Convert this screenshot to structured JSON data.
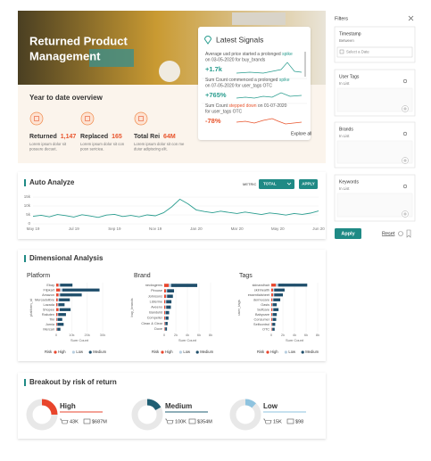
{
  "hero": {
    "title_lines": [
      "Returned Product",
      "Management"
    ]
  },
  "overview": {
    "title": "Year to date overview",
    "items": [
      {
        "label": "Returned",
        "value": "1,147",
        "text": [
          "Lorem ipsum dolor sit",
          "posuere decuet."
        ]
      },
      {
        "label": "Replaced",
        "value": "165",
        "text": [
          "Lorem ipsum dolor sit con",
          "posn sericiea."
        ]
      },
      {
        "label": "Total Rei",
        "value": "64M",
        "text": [
          "Lorem ipsum dolor sit con me",
          "duiur adipiscing elit."
        ]
      }
    ]
  },
  "signals": {
    "title": "Latest Signals",
    "link": "Explore all",
    "items": [
      {
        "pre": "Average usd price started a prolonged ",
        "hl": "spike",
        "line2": "on 03-05-2020 for buy_brands",
        "change": "+1.7k",
        "color": "#2a9d8f"
      },
      {
        "pre": "Sum Count commenced a prolonged ",
        "hl": "spike",
        "line2": "on 07-05-2020 for user_tags OTC",
        "change": "+765%",
        "color": "#2a9d8f"
      },
      {
        "pre": "Sum Count ",
        "hl": "stepped down",
        "post": " on 01-07-2020",
        "line2": "for user_tags OTC",
        "change": "-78%",
        "color": "#e8542c"
      }
    ]
  },
  "auto_analyze": {
    "title": "Auto Analyze",
    "metric_label": "METRIC",
    "metric": "TOTAL",
    "button": "APPLY",
    "chart": {
      "type": "line",
      "color": "#2a9d8f",
      "grid": true,
      "categories": [
        "May 19",
        null,
        null,
        null,
        null,
        "Jul 19",
        null,
        null,
        null,
        null,
        "Sep 19",
        null,
        null,
        null,
        null,
        "Nov 19",
        null,
        null,
        null,
        null,
        "Jan 20",
        null,
        null,
        null,
        null,
        "Mar 20",
        null,
        null,
        null,
        null,
        "May 20",
        null,
        null,
        null,
        null,
        "Jun 20"
      ],
      "values": [
        4200,
        4800,
        3900,
        5200,
        4600,
        3800,
        5100,
        4400,
        3600,
        4900,
        5300,
        4100,
        4700,
        3900,
        5000,
        4500,
        6200,
        9500,
        13800,
        11200,
        7800,
        6900,
        6200,
        7100,
        6400,
        5800,
        6600,
        5900,
        5200,
        6100,
        5600,
        4900,
        5800,
        5300,
        6000,
        7200
      ],
      "ylim": [
        0,
        15000
      ],
      "yticks": [
        0,
        {
          "value": 5000,
          "label": "5k"
        },
        {
          "value": 10000,
          "label": "10k"
        },
        {
          "value": 15000,
          "label": "15k"
        }
      ]
    }
  },
  "dimensional": {
    "title": "Dimensional Analysis",
    "charts": [
      {
        "type": "hbar-stacked",
        "title": "Platform",
        "ylabel": "platform_id",
        "xlabel": "Sum Count",
        "legend_title": "Risk",
        "categories": [
          "Ebay",
          "Flipkart",
          "Amazon",
          "Mercadolibre",
          "Lazada",
          "Shopee",
          "Rakuten",
          "Tiki",
          "Jumia",
          "Mercari"
        ],
        "series": [
          {
            "name": "High",
            "color": "#e8452c",
            "values": [
              1500,
              2500,
              1500,
              1000,
              800,
              1500,
              800,
              500,
              500,
              400
            ]
          },
          {
            "name": "Low",
            "color": "#b9cfe0",
            "values": [
              1000,
              1500,
              1000,
              800,
              600,
              800,
              500,
              400,
              300,
              300
            ]
          },
          {
            "name": "Medium",
            "color": "#1f4e6b",
            "values": [
              8000,
              24000,
              14000,
              7000,
              4000,
              7000,
              5000,
              3000,
              4000,
              2000
            ]
          }
        ],
        "xlim": [
          0,
          30000
        ],
        "xticks": [
          0,
          {
            "value": 10000,
            "label": "10k"
          },
          {
            "value": 20000,
            "label": "20k"
          },
          {
            "value": 30000,
            "label": "30k"
          }
        ]
      },
      {
        "type": "hbar-stacked",
        "title": "Brand",
        "ylabel": "buy_brands",
        "xlabel": "Sum Count",
        "legend_title": "Risk",
        "categories": [
          "necksgems",
          "Pirouse",
          "Johnsons",
          "Listerine",
          "Aveeno",
          "Bandulid",
          "Compeller",
          "Clean & Clear",
          "Dove"
        ],
        "series": [
          {
            "name": "High",
            "color": "#e8452c",
            "values": [
              800,
              300,
              300,
              200,
              200,
              150,
              150,
              100,
              100
            ]
          },
          {
            "name": "Low",
            "color": "#b9cfe0",
            "values": [
              400,
              200,
              200,
              150,
              150,
              100,
              100,
              100,
              80
            ]
          },
          {
            "name": "Medium",
            "color": "#1f4e6b",
            "values": [
              4500,
              1200,
              1000,
              900,
              800,
              600,
              500,
              400,
              300
            ]
          }
        ],
        "xlim": [
          0,
          8000
        ],
        "xticks": [
          0,
          {
            "value": 2000,
            "label": "2k"
          },
          {
            "value": 4000,
            "label": "4k"
          },
          {
            "value": 6000,
            "label": "6k"
          },
          {
            "value": 8000,
            "label": "8k"
          }
        ]
      },
      {
        "type": "hbar-stacked",
        "title": "Tags",
        "ylabel": "user_tags",
        "xlabel": "Sum Count",
        "legend_title": "Risk",
        "categories": [
          "skinandhair",
          "skinhealth",
          "essentialsheet",
          "dermocare",
          "Oasis",
          "Selfcare",
          "Babycare",
          "Consumer",
          "Selfcontrol",
          "OTC"
        ],
        "series": [
          {
            "name": "High",
            "color": "#e8452c",
            "values": [
              800,
              300,
              300,
              200,
              150,
              200,
              150,
              150,
              100,
              100
            ]
          },
          {
            "name": "Low",
            "color": "#b9cfe0",
            "values": [
              400,
              200,
              200,
              150,
              100,
              150,
              100,
              100,
              80,
              80
            ]
          },
          {
            "name": "Medium",
            "color": "#1f4e6b",
            "values": [
              5000,
              1800,
              1500,
              1200,
              700,
              900,
              700,
              600,
              500,
              400
            ]
          }
        ],
        "xlim": [
          0,
          8000
        ],
        "xticks": [
          0,
          {
            "value": 2000,
            "label": "2k"
          },
          {
            "value": 4000,
            "label": "4k"
          },
          {
            "value": 6000,
            "label": "6k"
          },
          {
            "value": 8000,
            "label": "8k"
          }
        ]
      }
    ]
  },
  "breakout": {
    "title": "Breakout by risk of return",
    "share_max": 100,
    "items": [
      {
        "label": "High",
        "count": "43K",
        "amount": "$687M",
        "share": 25,
        "color": "#e8452c"
      },
      {
        "label": "Medium",
        "count": "100K",
        "amount": "$354M",
        "share": 17,
        "color": "#1f5e73"
      },
      {
        "label": "Low",
        "count": "15K",
        "amount": "$98",
        "share": 12,
        "color": "#8ec3df"
      }
    ]
  },
  "filters": {
    "title": "Filters",
    "apply": "Apply",
    "reset": "Reset",
    "sections": [
      {
        "title": "Timestamp",
        "sub": "Between",
        "input": "Select a Date"
      },
      {
        "title": "User Tags",
        "sub": "In List"
      },
      {
        "title": "Brands",
        "sub": "In List"
      },
      {
        "title": "Keywords",
        "sub": "In List"
      }
    ]
  }
}
